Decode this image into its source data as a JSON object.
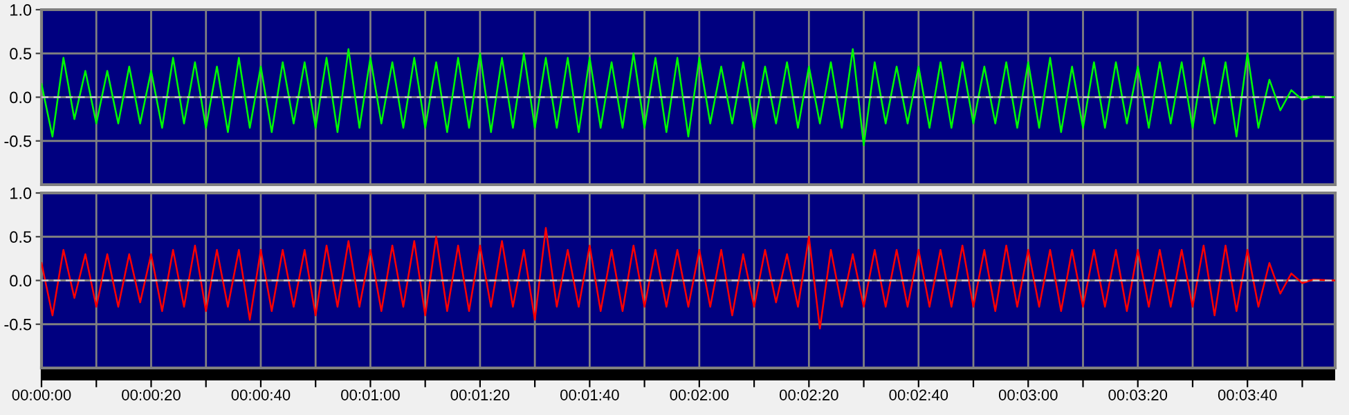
{
  "chart_data": [
    {
      "type": "line",
      "tick_labels": "y",
      "grid": true,
      "xlim": [
        0,
        236
      ],
      "ylim": [
        -1,
        1
      ],
      "xticks": [
        {
          "value": 0,
          "label": null
        },
        {
          "value": 10,
          "label": null
        },
        {
          "value": 20,
          "label": null
        },
        {
          "value": 30,
          "label": null
        },
        {
          "value": 40,
          "label": null
        },
        {
          "value": 50,
          "label": null
        },
        {
          "value": 60,
          "label": null
        },
        {
          "value": 70,
          "label": null
        },
        {
          "value": 80,
          "label": null
        },
        {
          "value": 90,
          "label": null
        },
        {
          "value": 100,
          "label": null
        },
        {
          "value": 110,
          "label": null
        },
        {
          "value": 120,
          "label": null
        },
        {
          "value": 130,
          "label": null
        },
        {
          "value": 140,
          "label": null
        },
        {
          "value": 150,
          "label": null
        },
        {
          "value": 160,
          "label": null
        },
        {
          "value": 170,
          "label": null
        },
        {
          "value": 180,
          "label": null
        },
        {
          "value": 190,
          "label": null
        },
        {
          "value": 200,
          "label": null
        },
        {
          "value": 210,
          "label": null
        },
        {
          "value": 220,
          "label": null
        },
        {
          "value": 230,
          "label": null
        }
      ],
      "yticks": [
        {
          "value": -0.5,
          "label": "-0.5"
        },
        {
          "value": 0,
          "label": "0.0"
        },
        {
          "value": 0.5,
          "label": "0.5"
        },
        {
          "value": 1,
          "label": "1.0"
        }
      ],
      "ref_lines": [
        {
          "axis": "y",
          "value": 0,
          "color": "#c8c8c8",
          "line_style": "dashed"
        }
      ],
      "x": [
        0,
        2,
        4,
        6,
        8,
        10,
        12,
        14,
        16,
        18,
        20,
        22,
        24,
        26,
        28,
        30,
        32,
        34,
        36,
        38,
        40,
        42,
        44,
        46,
        48,
        50,
        52,
        54,
        56,
        58,
        60,
        62,
        64,
        66,
        68,
        70,
        72,
        74,
        76,
        78,
        80,
        82,
        84,
        86,
        88,
        90,
        92,
        94,
        96,
        98,
        100,
        102,
        104,
        106,
        108,
        110,
        112,
        114,
        116,
        118,
        120,
        122,
        124,
        126,
        128,
        130,
        132,
        134,
        136,
        138,
        140,
        142,
        144,
        146,
        148,
        150,
        152,
        154,
        156,
        158,
        160,
        162,
        164,
        166,
        168,
        170,
        172,
        174,
        176,
        178,
        180,
        182,
        184,
        186,
        188,
        190,
        192,
        194,
        196,
        198,
        200,
        202,
        204,
        206,
        208,
        210,
        212,
        214,
        216,
        218,
        220,
        222,
        224,
        226,
        228,
        230,
        232,
        236
      ],
      "series": [
        {
          "color": "#00ff00",
          "values": [
            0.15,
            -0.45,
            0.45,
            -0.25,
            0.3,
            -0.3,
            0.3,
            -0.3,
            0.35,
            -0.3,
            0.3,
            -0.35,
            0.45,
            -0.3,
            0.4,
            -0.35,
            0.35,
            -0.4,
            0.45,
            -0.35,
            0.35,
            -0.4,
            0.4,
            -0.3,
            0.4,
            -0.35,
            0.45,
            -0.4,
            0.55,
            -0.35,
            0.45,
            -0.3,
            0.4,
            -0.35,
            0.45,
            -0.35,
            0.4,
            -0.4,
            0.45,
            -0.35,
            0.5,
            -0.4,
            0.45,
            -0.35,
            0.5,
            -0.35,
            0.45,
            -0.35,
            0.45,
            -0.4,
            0.45,
            -0.35,
            0.4,
            -0.35,
            0.5,
            -0.35,
            0.45,
            -0.4,
            0.45,
            -0.45,
            0.45,
            -0.3,
            0.35,
            -0.3,
            0.4,
            -0.35,
            0.35,
            -0.3,
            0.4,
            -0.35,
            0.35,
            -0.3,
            0.4,
            -0.35,
            0.55,
            -0.55,
            0.4,
            -0.3,
            0.35,
            -0.3,
            0.35,
            -0.35,
            0.4,
            -0.35,
            0.4,
            -0.3,
            0.35,
            -0.3,
            0.4,
            -0.35,
            0.4,
            -0.35,
            0.45,
            -0.4,
            0.35,
            -0.35,
            0.4,
            -0.35,
            0.4,
            -0.3,
            0.35,
            -0.35,
            0.4,
            -0.3,
            0.4,
            -0.35,
            0.45,
            -0.3,
            0.4,
            -0.45,
            0.5,
            -0.35,
            0.2,
            -0.15,
            0.08,
            -0.03,
            0.01,
            0
          ]
        }
      ]
    },
    {
      "type": "line",
      "grid": true,
      "xlim": [
        0,
        236
      ],
      "ylim": [
        -1,
        1
      ],
      "xticks": [
        {
          "value": 0,
          "label": "00:00:00"
        },
        {
          "value": 10,
          "label": null
        },
        {
          "value": 20,
          "label": "00:00:20"
        },
        {
          "value": 30,
          "label": null
        },
        {
          "value": 40,
          "label": "00:00:40"
        },
        {
          "value": 50,
          "label": null
        },
        {
          "value": 60,
          "label": "00:01:00"
        },
        {
          "value": 70,
          "label": null
        },
        {
          "value": 80,
          "label": "00:01:20"
        },
        {
          "value": 90,
          "label": null
        },
        {
          "value": 100,
          "label": "00:01:40"
        },
        {
          "value": 110,
          "label": null
        },
        {
          "value": 120,
          "label": "00:02:00"
        },
        {
          "value": 130,
          "label": null
        },
        {
          "value": 140,
          "label": "00:02:20"
        },
        {
          "value": 150,
          "label": null
        },
        {
          "value": 160,
          "label": "00:02:40"
        },
        {
          "value": 170,
          "label": null
        },
        {
          "value": 180,
          "label": "00:03:00"
        },
        {
          "value": 190,
          "label": null
        },
        {
          "value": 200,
          "label": "00:03:20"
        },
        {
          "value": 210,
          "label": null
        },
        {
          "value": 220,
          "label": "00:03:40"
        },
        {
          "value": 230,
          "label": null
        }
      ],
      "yticks": [
        {
          "value": -0.5,
          "label": "-0.5"
        },
        {
          "value": 0,
          "label": "0.0"
        },
        {
          "value": 0.5,
          "label": "0.5"
        },
        {
          "value": 1,
          "label": "1.0"
        }
      ],
      "ref_lines": [
        {
          "axis": "y",
          "value": 0,
          "color": "#c8c8c8",
          "line_style": "dashed"
        }
      ],
      "x": [
        0,
        2,
        4,
        6,
        8,
        10,
        12,
        14,
        16,
        18,
        20,
        22,
        24,
        26,
        28,
        30,
        32,
        34,
        36,
        38,
        40,
        42,
        44,
        46,
        48,
        50,
        52,
        54,
        56,
        58,
        60,
        62,
        64,
        66,
        68,
        70,
        72,
        74,
        76,
        78,
        80,
        82,
        84,
        86,
        88,
        90,
        92,
        94,
        96,
        98,
        100,
        102,
        104,
        106,
        108,
        110,
        112,
        114,
        116,
        118,
        120,
        122,
        124,
        126,
        128,
        130,
        132,
        134,
        136,
        138,
        140,
        142,
        144,
        146,
        148,
        150,
        152,
        154,
        156,
        158,
        160,
        162,
        164,
        166,
        168,
        170,
        172,
        174,
        176,
        178,
        180,
        182,
        184,
        186,
        188,
        190,
        192,
        194,
        196,
        198,
        200,
        202,
        204,
        206,
        208,
        210,
        212,
        214,
        216,
        218,
        220,
        222,
        224,
        226,
        228,
        230,
        232,
        236
      ],
      "series": [
        {
          "color": "#ff0000",
          "values": [
            0.2,
            -0.4,
            0.35,
            -0.2,
            0.3,
            -0.3,
            0.3,
            -0.3,
            0.3,
            -0.25,
            0.3,
            -0.35,
            0.35,
            -0.3,
            0.4,
            -0.35,
            0.35,
            -0.3,
            0.35,
            -0.45,
            0.35,
            -0.35,
            0.35,
            -0.3,
            0.35,
            -0.4,
            0.4,
            -0.3,
            0.45,
            -0.3,
            0.35,
            -0.35,
            0.4,
            -0.3,
            0.45,
            -0.4,
            0.5,
            -0.35,
            0.4,
            -0.35,
            0.4,
            -0.3,
            0.45,
            -0.3,
            0.35,
            -0.45,
            0.6,
            -0.3,
            0.35,
            -0.3,
            0.4,
            -0.35,
            0.35,
            -0.35,
            0.4,
            -0.3,
            0.35,
            -0.3,
            0.35,
            -0.3,
            0.35,
            -0.3,
            0.35,
            -0.4,
            0.3,
            -0.3,
            0.35,
            -0.25,
            0.3,
            -0.3,
            0.5,
            -0.55,
            0.35,
            -0.3,
            0.3,
            -0.3,
            0.35,
            -0.3,
            0.35,
            -0.3,
            0.35,
            -0.3,
            0.35,
            -0.3,
            0.4,
            -0.3,
            0.35,
            -0.35,
            0.4,
            -0.3,
            0.35,
            -0.3,
            0.35,
            -0.35,
            0.35,
            -0.3,
            0.35,
            -0.3,
            0.35,
            -0.35,
            0.35,
            -0.3,
            0.35,
            -0.3,
            0.35,
            -0.3,
            0.4,
            -0.4,
            0.4,
            -0.35,
            0.35,
            -0.3,
            0.2,
            -0.15,
            0.08,
            -0.03,
            0.01,
            0
          ]
        }
      ]
    }
  ]
}
